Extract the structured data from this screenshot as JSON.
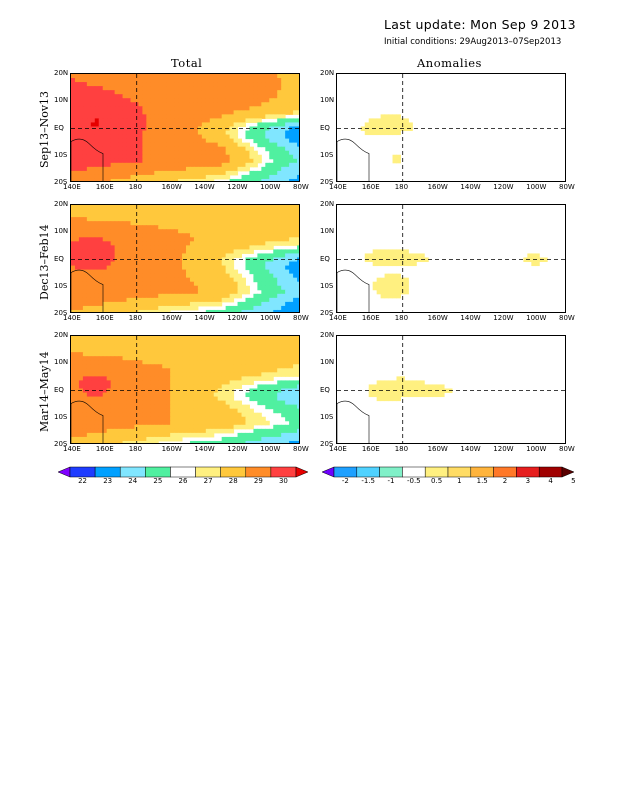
{
  "header": {
    "last_update": "Last update: Mon Sep 9 2013",
    "initial_conditions": "Initial conditions: 29Aug2013–07Sep2013"
  },
  "columns": {
    "total": "Total",
    "anomalies": "Anomalies"
  },
  "rows": [
    "Sep13–Nov13",
    "Dec13–Feb14",
    "Mar14–May14"
  ],
  "chart_data": {
    "type": "heatmap",
    "x_ticks": [
      "140E",
      "160E",
      "180",
      "160W",
      "140W",
      "120W",
      "100W",
      "80W"
    ],
    "y_ticks": [
      "20N",
      "10N",
      "EQ",
      "10S",
      "20S"
    ],
    "total_colorbar": {
      "levels": [
        22,
        23,
        24,
        25,
        26,
        27,
        28,
        29,
        30
      ],
      "labels": [
        "22",
        "23",
        "24",
        "25",
        "26",
        "27",
        "28",
        "29",
        "30"
      ],
      "colors": [
        "#8000ff",
        "#1e3cff",
        "#00a0ff",
        "#80e6ff",
        "#50f0a0",
        "#ffffff",
        "#fff080",
        "#ffc83c",
        "#ff8c28",
        "#ff4040",
        "#e60000"
      ]
    },
    "anom_colorbar": {
      "levels": [
        -2,
        -1.5,
        -1,
        -0.5,
        0.5,
        1,
        1.5,
        2,
        3,
        4,
        5
      ],
      "labels": [
        "-2",
        "-1.5",
        "-1",
        "-0.5",
        "0.5",
        "1",
        "1.5",
        "2",
        "3",
        "4",
        "5"
      ],
      "colors": [
        "#6e00ff",
        "#1ea0ff",
        "#50d2ff",
        "#80f0c8",
        "#ffffff",
        "#fff080",
        "#ffdc64",
        "#ffb43c",
        "#ff7828",
        "#e61e1e",
        "#a00000",
        "#5a0000"
      ]
    }
  }
}
